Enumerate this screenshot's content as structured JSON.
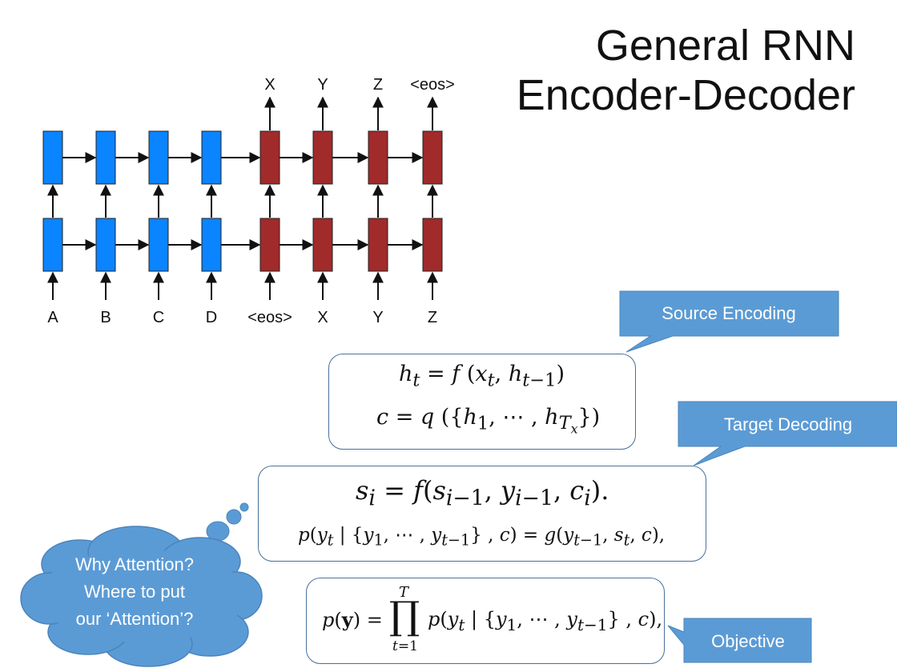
{
  "title": {
    "line1": "General RNN",
    "line2": "Encoder-Decoder"
  },
  "diagram": {
    "top_outputs": [
      "X",
      "Y",
      "Z",
      "<eos>"
    ],
    "bottom_inputs": [
      "A",
      "B",
      "C",
      "D",
      "<eos>",
      "X",
      "Y",
      "Z"
    ],
    "colors": {
      "encoder": "#0a84ff",
      "decoder": "#a12a2a",
      "arrow": "#111111"
    }
  },
  "equations": {
    "source_1": "h_t = f(x_t, h_{t−1})",
    "source_2": "c = q({h_1, ⋯ , h_{T_x}})",
    "target_1": "s_i = f(s_{i−1}, y_{i−1}, c_i).",
    "target_2": "p(y_t | {y_1, ⋯ , y_{t−1}}, c) = g(y_{t−1}, s_t, c),",
    "objective": "p(y) = ∏_{t=1}^{T} p(y_t | {y_1, ⋯ , y_{t−1}}, c),"
  },
  "callouts": {
    "source": "Source Encoding",
    "target": "Target Decoding",
    "objective": "Objective",
    "color": "#5b9bd5"
  },
  "thought": {
    "line1": "Why Attention?",
    "line2": "Where to put",
    "line3": "our ‘Attention’?"
  }
}
